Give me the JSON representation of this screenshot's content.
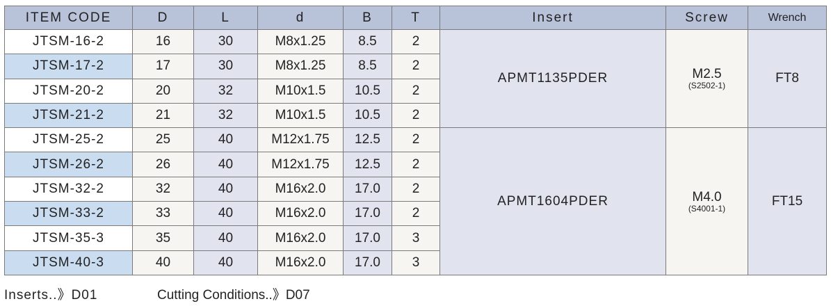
{
  "headers": [
    "ITEM CODE",
    "D",
    "L",
    "d",
    "B",
    "T",
    "Insert",
    "Screw",
    "Wrench"
  ],
  "rows": [
    [
      "JTSM-16-2",
      "16",
      "30",
      "M8x1.25",
      "8.5",
      "2"
    ],
    [
      "JTSM-17-2",
      "17",
      "30",
      "M8x1.25",
      "8.5",
      "2"
    ],
    [
      "JTSM-20-2",
      "20",
      "32",
      "M10x1.5",
      "10.5",
      "2"
    ],
    [
      "JTSM-21-2",
      "21",
      "32",
      "M10x1.5",
      "10.5",
      "2"
    ],
    [
      "JTSM-25-2",
      "25",
      "40",
      "M12x1.75",
      "12.5",
      "2"
    ],
    [
      "JTSM-26-2",
      "26",
      "40",
      "M12x1.75",
      "12.5",
      "2"
    ],
    [
      "JTSM-32-2",
      "32",
      "40",
      "M16x2.0",
      "17.0",
      "2"
    ],
    [
      "JTSM-33-2",
      "33",
      "40",
      "M16x2.0",
      "17.0",
      "2"
    ],
    [
      "JTSM-35-3",
      "35",
      "40",
      "M16x2.0",
      "17.0",
      "3"
    ],
    [
      "JTSM-40-3",
      "40",
      "40",
      "M16x2.0",
      "17.0",
      "3"
    ]
  ],
  "groups": [
    {
      "insert": "APMT1135PDER",
      "screw": "M2.5",
      "screw_code": "(S2502-1)",
      "wrench": "FT8"
    },
    {
      "insert": "APMT1604PDER",
      "screw": "M4.0",
      "screw_code": "(S4001-1)",
      "wrench": "FT15"
    }
  ],
  "footer": {
    "inserts": "Inserts..》D01",
    "cutting": "Cutting Conditions..》D07"
  }
}
